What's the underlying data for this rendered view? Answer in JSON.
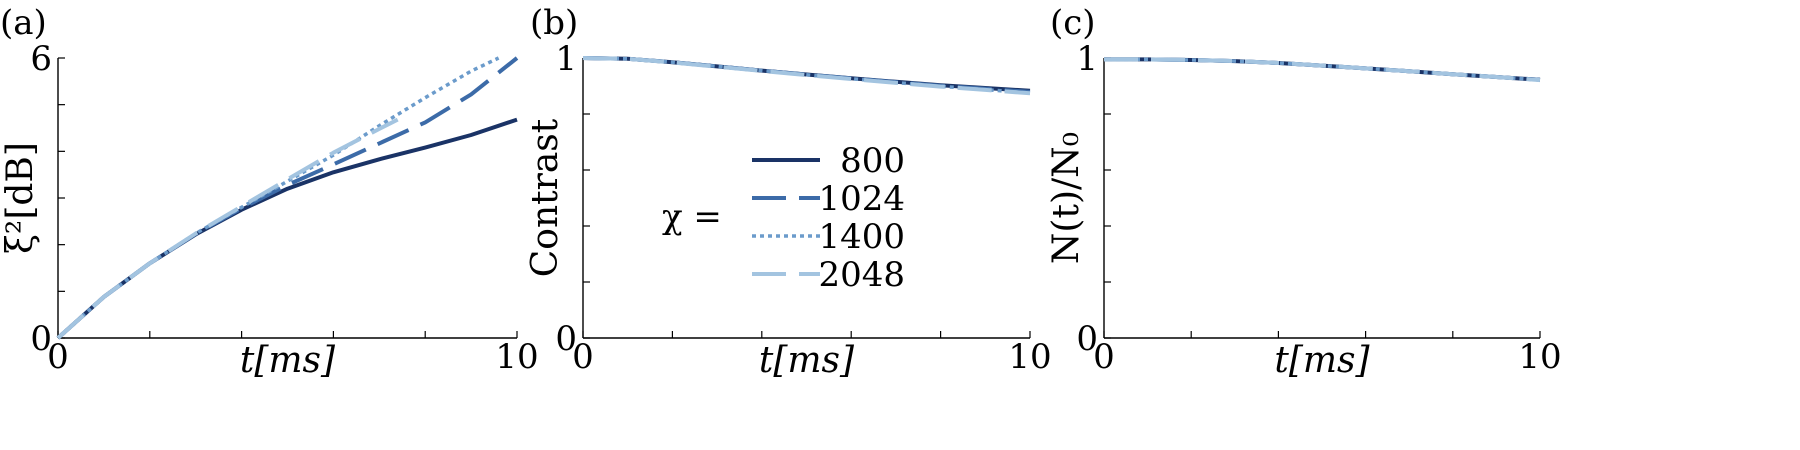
{
  "legend": {
    "prefix": "χ =",
    "entries": [
      "800",
      "1024",
      "1400",
      "2048"
    ]
  },
  "chart_data": [
    {
      "type": "line",
      "panel_label": "(a)",
      "xlabel": "t[ms]",
      "ylabel": "ξ²[dB]",
      "xlim": [
        0,
        10
      ],
      "ylim": [
        0,
        6
      ],
      "xticks": [
        0,
        2,
        4,
        6,
        8,
        10
      ],
      "xtick_labels": [
        "0",
        "",
        "",
        "",
        "",
        "10"
      ],
      "yticks": [
        0,
        1,
        2,
        3,
        4,
        5,
        6
      ],
      "ytick_labels": [
        "0",
        "",
        "",
        "",
        "",
        "",
        "6"
      ],
      "grid": false,
      "legend_position": "none",
      "series": [
        {
          "name": "800",
          "color": "#1a3366",
          "dash": "solid",
          "x": [
            0,
            1,
            2,
            3,
            4,
            5,
            6,
            7,
            8,
            9,
            10
          ],
          "y": [
            0,
            0.88,
            1.6,
            2.22,
            2.75,
            3.2,
            3.55,
            3.83,
            4.08,
            4.35,
            4.68
          ]
        },
        {
          "name": "1024",
          "color": "#3c6ba8",
          "dash": "long",
          "x": [
            0,
            1,
            2,
            3,
            4,
            5,
            6,
            7,
            8,
            9,
            10
          ],
          "y": [
            0,
            0.88,
            1.6,
            2.23,
            2.78,
            3.28,
            3.72,
            4.17,
            4.62,
            5.22,
            6.0
          ]
        },
        {
          "name": "1400",
          "color": "#6b9bcb",
          "dash": "dotted",
          "x": [
            0,
            1,
            2,
            3,
            4,
            5,
            6,
            7,
            8,
            9,
            9.6
          ],
          "y": [
            0,
            0.88,
            1.6,
            2.24,
            2.8,
            3.36,
            3.92,
            4.55,
            5.15,
            5.72,
            6.0
          ]
        },
        {
          "name": "2048",
          "color": "#a3c4e0",
          "dash": "long",
          "x": [
            0,
            1,
            2,
            3,
            4,
            5,
            6,
            7,
            7.4
          ],
          "y": [
            0,
            0.88,
            1.6,
            2.24,
            2.82,
            3.4,
            3.97,
            4.48,
            4.68
          ]
        }
      ]
    },
    {
      "type": "line",
      "panel_label": "(b)",
      "xlabel": "t[ms]",
      "ylabel": "Contrast",
      "xlim": [
        0,
        10
      ],
      "ylim": [
        0,
        1
      ],
      "xticks": [
        0,
        2,
        4,
        6,
        8,
        10
      ],
      "xtick_labels": [
        "0",
        "",
        "",
        "",
        "",
        "10"
      ],
      "yticks": [
        0,
        0.2,
        0.4,
        0.6,
        0.8,
        1.0
      ],
      "ytick_labels": [
        "0",
        "",
        "",
        "",
        "",
        "1"
      ],
      "grid": false,
      "legend_position": "center",
      "series": [
        {
          "name": "800",
          "color": "#1a3366",
          "dash": "solid",
          "x": [
            0,
            1,
            2,
            3,
            4,
            5,
            6,
            7,
            8,
            9,
            10
          ],
          "y": [
            1.0,
            0.997,
            0.985,
            0.97,
            0.955,
            0.941,
            0.928,
            0.915,
            0.903,
            0.893,
            0.883
          ]
        },
        {
          "name": "1024",
          "color": "#3c6ba8",
          "dash": "long",
          "x": [
            0,
            1,
            2,
            3,
            4,
            5,
            6,
            7,
            8,
            9,
            10
          ],
          "y": [
            1.0,
            0.997,
            0.985,
            0.97,
            0.955,
            0.941,
            0.927,
            0.914,
            0.901,
            0.89,
            0.879
          ]
        },
        {
          "name": "1400",
          "color": "#6b9bcb",
          "dash": "dotted",
          "x": [
            0,
            1,
            2,
            3,
            4,
            5,
            6,
            7,
            8,
            9,
            10
          ],
          "y": [
            1.0,
            0.997,
            0.985,
            0.97,
            0.955,
            0.94,
            0.926,
            0.912,
            0.899,
            0.887,
            0.875
          ]
        },
        {
          "name": "2048",
          "color": "#a3c4e0",
          "dash": "long",
          "x": [
            0,
            1,
            2,
            3,
            4,
            5,
            6,
            7,
            8,
            9,
            10
          ],
          "y": [
            1.0,
            0.997,
            0.984,
            0.969,
            0.954,
            0.939,
            0.925,
            0.911,
            0.898,
            0.886,
            0.874
          ]
        }
      ]
    },
    {
      "type": "line",
      "panel_label": "(c)",
      "xlabel": "t[ms]",
      "ylabel": "N(t)/N₀",
      "xlim": [
        0,
        10
      ],
      "ylim": [
        0,
        1
      ],
      "xticks": [
        0,
        2,
        4,
        6,
        8,
        10
      ],
      "xtick_labels": [
        "0",
        "",
        "",
        "",
        "",
        "10"
      ],
      "yticks": [
        0,
        0.2,
        0.4,
        0.6,
        0.8,
        1.0
      ],
      "ytick_labels": [
        "0",
        "",
        "",
        "",
        "",
        "1"
      ],
      "grid": false,
      "legend_position": "none",
      "series": [
        {
          "name": "800",
          "color": "#1a3366",
          "dash": "solid",
          "x": [
            0,
            1,
            2,
            3,
            4,
            5,
            6,
            7,
            8,
            9,
            10
          ],
          "y": [
            0.995,
            0.995,
            0.993,
            0.989,
            0.982,
            0.973,
            0.963,
            0.953,
            0.942,
            0.932,
            0.922
          ]
        },
        {
          "name": "1024",
          "color": "#3c6ba8",
          "dash": "long",
          "x": [
            0,
            1,
            2,
            3,
            4,
            5,
            6,
            7,
            8,
            9,
            10
          ],
          "y": [
            0.995,
            0.995,
            0.993,
            0.989,
            0.982,
            0.973,
            0.963,
            0.953,
            0.942,
            0.932,
            0.922
          ]
        },
        {
          "name": "1400",
          "color": "#6b9bcb",
          "dash": "dotted",
          "x": [
            0,
            1,
            2,
            3,
            4,
            5,
            6,
            7,
            8,
            9,
            10
          ],
          "y": [
            0.995,
            0.995,
            0.993,
            0.989,
            0.982,
            0.973,
            0.963,
            0.953,
            0.942,
            0.932,
            0.922
          ]
        },
        {
          "name": "2048",
          "color": "#a3c4e0",
          "dash": "long",
          "x": [
            0,
            1,
            2,
            3,
            4,
            5,
            6,
            7,
            8,
            9,
            10
          ],
          "y": [
            0.995,
            0.995,
            0.993,
            0.989,
            0.982,
            0.973,
            0.963,
            0.953,
            0.942,
            0.932,
            0.921
          ]
        }
      ]
    }
  ]
}
